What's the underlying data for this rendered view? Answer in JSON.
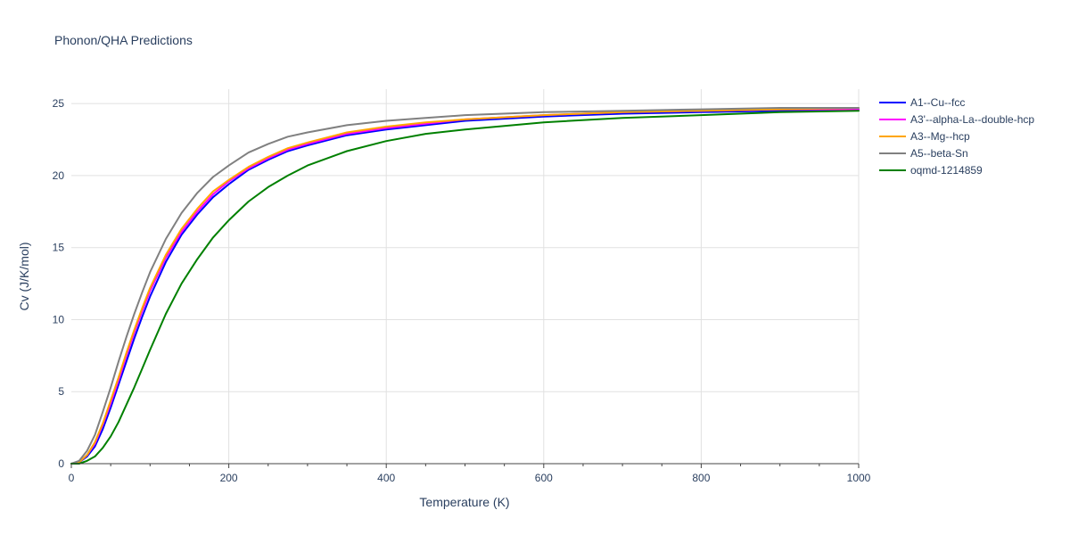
{
  "chart_data": {
    "type": "line",
    "title": "Phonon/QHA Predictions",
    "xlabel": "Temperature (K)",
    "ylabel": "Cv (J/K/mol)",
    "xlim": [
      0,
      1000
    ],
    "ylim": [
      0,
      26
    ],
    "x_ticks": [
      0,
      200,
      400,
      600,
      800,
      1000
    ],
    "y_ticks": [
      0,
      5,
      10,
      15,
      20,
      25
    ],
    "x_tick_labels": [
      "0",
      "200",
      "400",
      "600",
      "800",
      "1000"
    ],
    "y_tick_labels": [
      "0",
      "5",
      "10",
      "15",
      "20",
      "25"
    ],
    "grid": true,
    "legend_position": "top-right",
    "x": [
      0,
      10,
      20,
      30,
      40,
      50,
      60,
      70,
      80,
      90,
      100,
      120,
      140,
      160,
      180,
      200,
      225,
      250,
      275,
      300,
      350,
      400,
      450,
      500,
      600,
      700,
      800,
      900,
      1000
    ],
    "series": [
      {
        "name": "A1--Cu--fcc",
        "color": "#0000ff",
        "values": [
          0,
          0.1,
          0.5,
          1.2,
          2.4,
          3.9,
          5.5,
          7.1,
          8.7,
          10.2,
          11.6,
          14.0,
          15.9,
          17.3,
          18.5,
          19.4,
          20.4,
          21.1,
          21.7,
          22.1,
          22.8,
          23.2,
          23.5,
          23.8,
          24.1,
          24.3,
          24.4,
          24.5,
          24.6
        ]
      },
      {
        "name": "A3'--alpha-La--double-hcp",
        "color": "#ff00ff",
        "values": [
          0,
          0.1,
          0.6,
          1.4,
          2.7,
          4.2,
          5.8,
          7.5,
          9.1,
          10.6,
          12.0,
          14.3,
          16.1,
          17.5,
          18.7,
          19.6,
          20.5,
          21.2,
          21.8,
          22.2,
          22.9,
          23.3,
          23.6,
          23.9,
          24.2,
          24.4,
          24.5,
          24.6,
          24.6
        ]
      },
      {
        "name": "A3--Mg--hcp",
        "color": "#ffa500",
        "values": [
          0,
          0.1,
          0.6,
          1.5,
          2.8,
          4.4,
          6.0,
          7.7,
          9.3,
          10.8,
          12.2,
          14.5,
          16.3,
          17.7,
          18.9,
          19.7,
          20.6,
          21.3,
          21.9,
          22.3,
          23.0,
          23.4,
          23.7,
          23.9,
          24.2,
          24.4,
          24.5,
          24.6,
          24.7
        ]
      },
      {
        "name": "A5--beta-Sn",
        "color": "#808080",
        "values": [
          0,
          0.2,
          0.9,
          2.0,
          3.6,
          5.3,
          7.1,
          8.8,
          10.4,
          11.9,
          13.3,
          15.6,
          17.4,
          18.8,
          19.9,
          20.7,
          21.6,
          22.2,
          22.7,
          23.0,
          23.5,
          23.8,
          24.0,
          24.2,
          24.4,
          24.5,
          24.6,
          24.7,
          24.7
        ]
      },
      {
        "name": "oqmd-1214859",
        "color": "#008000",
        "values": [
          0,
          0.0,
          0.2,
          0.5,
          1.1,
          1.9,
          2.9,
          4.1,
          5.3,
          6.6,
          7.9,
          10.4,
          12.5,
          14.2,
          15.7,
          16.9,
          18.2,
          19.2,
          20.0,
          20.7,
          21.7,
          22.4,
          22.9,
          23.2,
          23.7,
          24.0,
          24.2,
          24.4,
          24.5
        ]
      }
    ]
  }
}
